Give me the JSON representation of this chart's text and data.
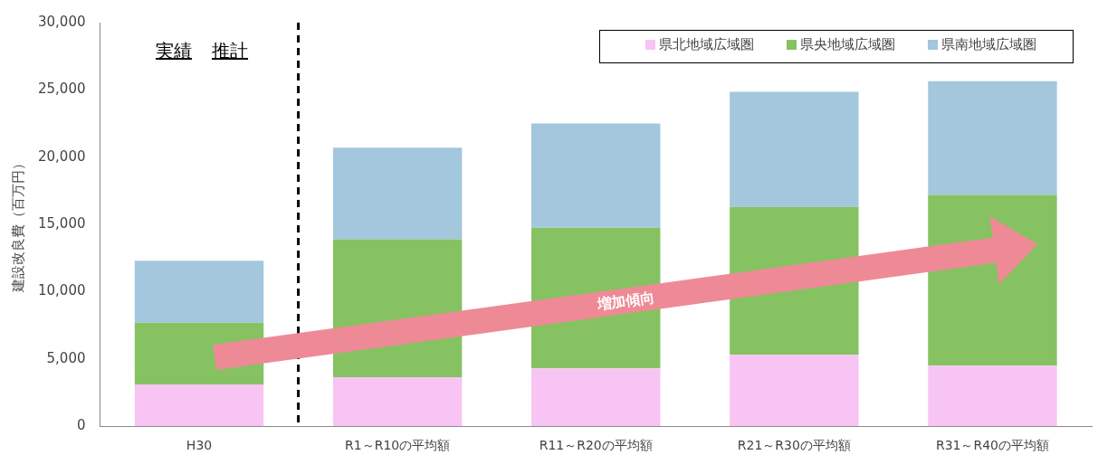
{
  "chart_data": {
    "type": "bar",
    "stacked": true,
    "ylabel": "建設改良費（百万円）",
    "categories": [
      "H30",
      "R1～R10の平均額",
      "R11～R20の平均額",
      "R21～R30の平均額",
      "R31～R40の平均額"
    ],
    "series": [
      {
        "name": "県北地域広域圏",
        "color": "#f7c4f3",
        "values": [
          3100,
          3650,
          4300,
          5300,
          4500
        ]
      },
      {
        "name": "県央地域広域圏",
        "color": "#86c262",
        "values": [
          4600,
          10250,
          10450,
          11000,
          12700
        ]
      },
      {
        "name": "県南地域広域圏",
        "color": "#a3c7dc",
        "values": [
          4600,
          6800,
          7750,
          8550,
          8450
        ]
      }
    ],
    "ylim": [
      0,
      30000
    ],
    "yticks": [
      {
        "value": 0,
        "label": "0"
      },
      {
        "value": 5000,
        "label": "5,000"
      },
      {
        "value": 10000,
        "label": "10,000"
      },
      {
        "value": 15000,
        "label": "15,000"
      },
      {
        "value": 20000,
        "label": "20,000"
      },
      {
        "value": 25000,
        "label": "25,000"
      },
      {
        "value": 30000,
        "label": "30,000"
      }
    ],
    "grid": false,
    "legend": "top right",
    "annotations": [
      "実績",
      "推計",
      "増加傾向"
    ]
  }
}
